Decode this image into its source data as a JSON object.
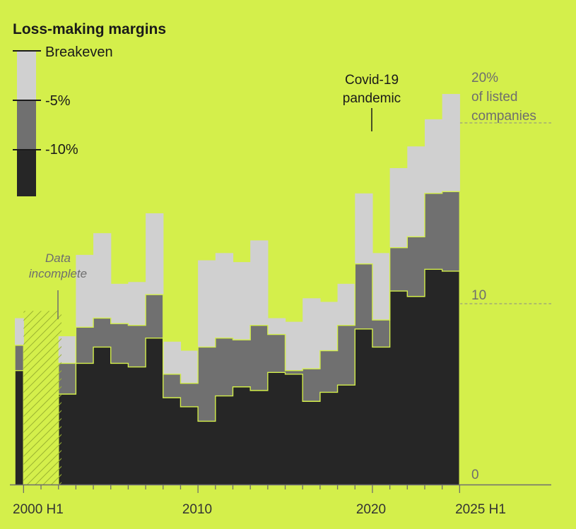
{
  "chart_data": {
    "type": "area",
    "subtype": "stacked-step",
    "title": "Loss-making margins",
    "legend": {
      "position": "top-left",
      "entries": [
        {
          "label": "Breakeven",
          "color": "#d0d0d0"
        },
        {
          "label": "-5%",
          "color": "#707070"
        },
        {
          "label": "-10%",
          "color": "#262626"
        }
      ]
    },
    "y_axis": {
      "min": 0,
      "max": 23,
      "position": "right",
      "ticks": [
        {
          "value": 0,
          "label": "0"
        },
        {
          "value": 10,
          "label": "10"
        },
        {
          "value": 20,
          "label": "20%",
          "sublabels": [
            "of listed",
            "companies"
          ]
        }
      ],
      "gridlines_dashed": [
        10,
        20
      ]
    },
    "x_axis": {
      "labels": [
        {
          "period": "2000 H1",
          "label": "2000 H1"
        },
        {
          "period": "2010 H1",
          "label": "2010"
        },
        {
          "period": "2020 H1",
          "label": "2020"
        },
        {
          "period": "2025 H1",
          "label": "2025 H1"
        }
      ]
    },
    "periods": [
      "2000 H1",
      "2000 H2",
      "2001 H1",
      "2001 H2",
      "2002 H1",
      "2002 H2",
      "2003 H1",
      "2003 H2",
      "2004 H1",
      "2004 H2",
      "2005 H1",
      "2005 H2",
      "2006 H1",
      "2006 H2",
      "2007 H1",
      "2007 H2",
      "2008 H1",
      "2008 H2",
      "2009 H1",
      "2009 H2",
      "2010 H1",
      "2010 H2",
      "2011 H1",
      "2011 H2",
      "2012 H1",
      "2012 H2",
      "2013 H1",
      "2013 H2",
      "2014 H1",
      "2014 H2",
      "2015 H1",
      "2015 H2",
      "2016 H1",
      "2016 H2",
      "2017 H1",
      "2017 H2",
      "2018 H1",
      "2018 H2",
      "2019 H1",
      "2019 H2",
      "2020 H1",
      "2020 H2",
      "2021 H1",
      "2021 H2",
      "2022 H1",
      "2022 H2",
      "2023 H1",
      "2023 H2",
      "2024 H1",
      "2024 H2",
      "2025 H1"
    ],
    "series": [
      {
        "name": "-10%",
        "values": [
          6.3,
          null,
          null,
          null,
          null,
          5.0,
          5.0,
          6.7,
          6.7,
          7.6,
          7.6,
          6.7,
          6.7,
          6.5,
          6.5,
          8.1,
          8.1,
          4.8,
          4.8,
          4.3,
          4.3,
          3.5,
          3.5,
          4.9,
          4.9,
          5.4,
          5.4,
          5.2,
          5.2,
          6.2,
          6.2,
          6.1,
          6.1,
          4.6,
          4.6,
          5.1,
          5.1,
          5.5,
          5.5,
          8.6,
          8.6,
          7.6,
          7.6,
          10.7,
          10.7,
          10.4,
          10.4,
          11.9,
          11.9,
          11.8,
          11.8
        ]
      },
      {
        "name": "-5%",
        "values": [
          7.7,
          null,
          null,
          null,
          null,
          6.7,
          6.7,
          8.7,
          8.7,
          9.2,
          9.2,
          8.9,
          8.9,
          8.8,
          8.8,
          10.5,
          10.5,
          6.1,
          6.1,
          5.6,
          5.6,
          7.6,
          7.6,
          8.1,
          8.1,
          8.0,
          8.0,
          8.8,
          8.8,
          8.3,
          8.3,
          6.3,
          6.3,
          6.4,
          6.4,
          7.4,
          7.4,
          8.8,
          8.8,
          12.2,
          12.2,
          9.1,
          9.1,
          13.1,
          13.1,
          13.7,
          13.7,
          16.1,
          16.1,
          16.2,
          16.2
        ]
      },
      {
        "name": "Breakeven",
        "values": [
          9.2,
          null,
          null,
          null,
          null,
          8.2,
          8.2,
          12.7,
          12.7,
          13.9,
          13.9,
          11.1,
          11.1,
          11.2,
          11.2,
          15.0,
          15.0,
          7.9,
          7.9,
          7.4,
          7.4,
          12.4,
          12.4,
          12.8,
          12.8,
          12.3,
          12.3,
          13.5,
          13.5,
          9.2,
          9.2,
          9.0,
          9.0,
          10.3,
          10.3,
          10.1,
          10.1,
          11.1,
          11.1,
          16.1,
          16.1,
          12.8,
          12.8,
          17.5,
          17.5,
          18.7,
          18.7,
          20.2,
          20.2,
          21.6,
          21.6
        ]
      }
    ],
    "annotations": [
      {
        "text_lines": [
          "Data",
          "incomplete"
        ],
        "period_range": [
          "2000 H2",
          "2002 H2"
        ],
        "style": "hatched"
      },
      {
        "text_lines": [
          "Covid-19",
          "pandemic"
        ],
        "period": "2020 H1"
      }
    ],
    "colors": {
      "background": "#d4ef4b",
      "breakeven": "#d0d0d0",
      "minus5": "#707070",
      "minus10": "#262626",
      "hatch": "#9bb331"
    }
  }
}
